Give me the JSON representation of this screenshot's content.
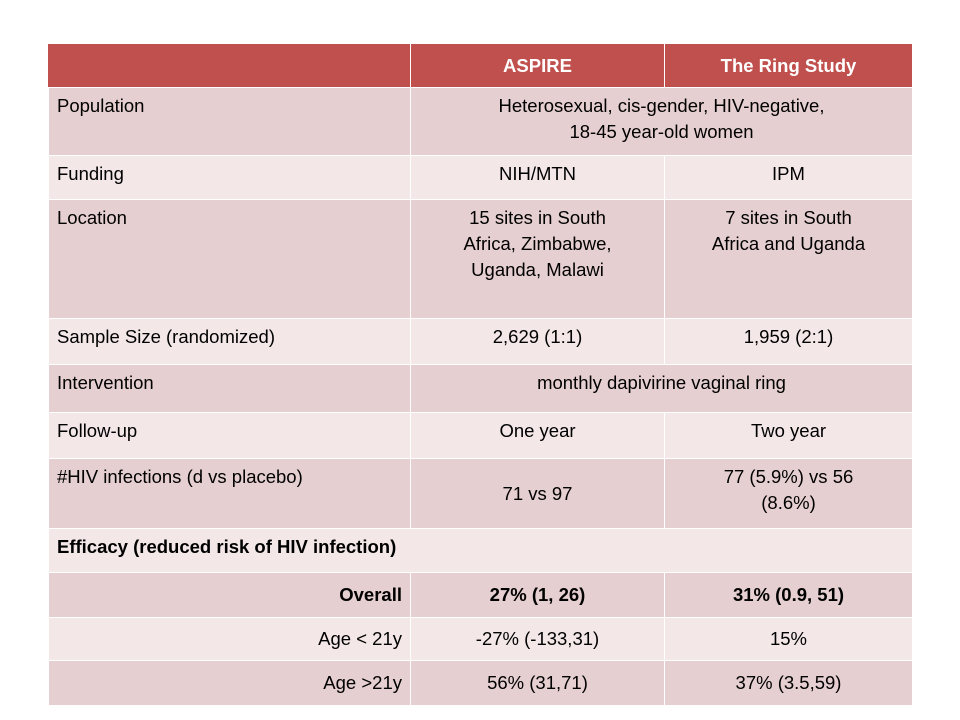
{
  "header": {
    "col1": "",
    "col2": "ASPIRE",
    "col3": "The Ring Study"
  },
  "rows": {
    "population": {
      "label": "Population",
      "value_line1": "Heterosexual, cis-gender, HIV-negative,",
      "value_line2": "18-45 year-old women"
    },
    "funding": {
      "label": "Funding",
      "aspire": "NIH/MTN",
      "ring": "IPM"
    },
    "location": {
      "label": "Location",
      "aspire_line1": "15 sites in South",
      "aspire_line2": "Africa, Zimbabwe,",
      "aspire_line3": "Uganda, Malawi",
      "ring_line1": "7 sites in South",
      "ring_line2": "Africa and Uganda"
    },
    "sample_size": {
      "label": "Sample Size (randomized)",
      "aspire": "2,629 (1:1)",
      "ring": "1,959 (2:1)"
    },
    "intervention": {
      "label": "Intervention",
      "value": "monthly dapivirine vaginal ring"
    },
    "follow_up": {
      "label": "Follow-up",
      "aspire": "One year",
      "ring": "Two year"
    },
    "hiv_infections": {
      "label": "#HIV infections (d vs placebo)",
      "aspire": "71 vs 97",
      "ring_line1": "77 (5.9%) vs 56",
      "ring_line2": "(8.6%)"
    },
    "efficacy": {
      "label": "Efficacy (reduced risk of HIV infection)"
    },
    "overall": {
      "label": "Overall",
      "aspire": "27% (1, 26)",
      "ring": "31% (0.9, 51)"
    },
    "age_under_21": {
      "label": "Age < 21y",
      "aspire": "-27% (-133,31)",
      "ring": "15%"
    },
    "age_over_21": {
      "label": "Age >21y",
      "aspire": "56% (31,71)",
      "ring": "37% (3.5,59)"
    }
  },
  "colors": {
    "header": "#c0504d",
    "row_dark": "#e6cfd0",
    "row_light": "#f3e7e8"
  }
}
